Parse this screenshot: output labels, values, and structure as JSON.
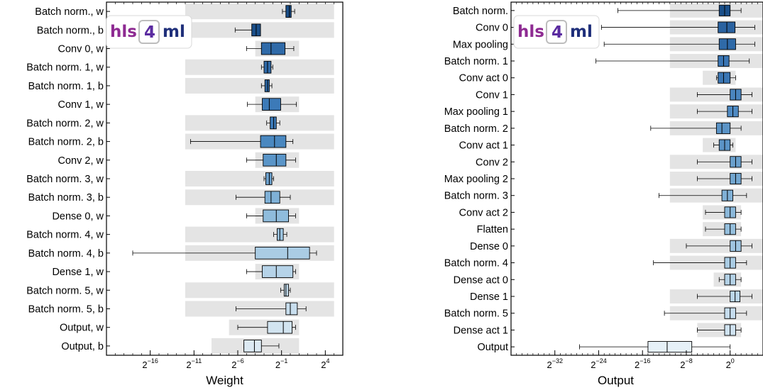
{
  "logo": {
    "part1": "hls",
    "part2": "4",
    "part3": "ml"
  },
  "chart_data": [
    {
      "type": "box",
      "xlabel": "Weight",
      "xscale": "log2",
      "xlim_exp": [
        -21,
        6
      ],
      "xticks": [
        {
          "base": "2",
          "exp": "−16",
          "e": -16
        },
        {
          "base": "2",
          "exp": "−11",
          "e": -11
        },
        {
          "base": "2",
          "exp": "−6",
          "e": -6
        },
        {
          "base": "2",
          "exp": "−1",
          "e": -1
        },
        {
          "base": "2",
          "exp": "4",
          "e": 4
        }
      ],
      "rows": [
        {
          "label": "Batch norm., w",
          "band": [
            -12,
            5
          ],
          "whisker": [
            -0.9,
            0.5
          ],
          "box": [
            -0.5,
            0.1
          ],
          "median": -0.1,
          "color": "#1a4f8a"
        },
        {
          "label": "Batch norm., b",
          "band": [
            -12,
            5
          ],
          "whisker": [
            -6.3,
            -3.4
          ],
          "box": [
            -4.4,
            -3.4
          ],
          "median": -3.9,
          "color": "#1a4f8a"
        },
        {
          "label": "Conv 0, w",
          "band": [
            -4,
            1
          ],
          "whisker": [
            -5.0,
            0.4
          ],
          "box": [
            -3.3,
            -0.6
          ],
          "median": -2.2,
          "color": "#2f6aa8"
        },
        {
          "label": "Batch norm. 1, w",
          "band": [
            -12,
            5
          ],
          "whisker": [
            -3.3,
            -2.0
          ],
          "box": [
            -3.0,
            -2.2
          ],
          "median": -2.6,
          "color": "#2f6aa8"
        },
        {
          "label": "Batch norm. 1, b",
          "band": [
            -12,
            5
          ],
          "whisker": [
            -3.3,
            -2.1
          ],
          "box": [
            -2.9,
            -2.4
          ],
          "median": -2.6,
          "color": "#2f6aa8"
        },
        {
          "label": "Conv 1, w",
          "band": [
            -4,
            1
          ],
          "whisker": [
            -4.9,
            0.7
          ],
          "box": [
            -3.2,
            -1.1
          ],
          "median": -2.4,
          "color": "#3c7ab8"
        },
        {
          "label": "Batch norm. 2, w",
          "band": [
            -12,
            5
          ],
          "whisker": [
            -2.7,
            -1.2
          ],
          "box": [
            -2.3,
            -1.6
          ],
          "median": -1.9,
          "color": "#3c7ab8"
        },
        {
          "label": "Batch norm. 2, b",
          "band": [
            -12,
            5
          ],
          "whisker": [
            -11.4,
            0.3
          ],
          "box": [
            -3.4,
            -0.5
          ],
          "median": -1.8,
          "color": "#4a88c0"
        },
        {
          "label": "Conv 2, w",
          "band": [
            -4,
            1
          ],
          "whisker": [
            -5.0,
            0.6
          ],
          "box": [
            -3.1,
            -0.5
          ],
          "median": -1.6,
          "color": "#5a95c8"
        },
        {
          "label": "Batch norm. 3, w",
          "band": [
            -12,
            5
          ],
          "whisker": [
            -3.0,
            -1.9
          ],
          "box": [
            -2.8,
            -2.1
          ],
          "median": -2.4,
          "color": "#6ea3cf"
        },
        {
          "label": "Batch norm. 3, b",
          "band": [
            -12,
            5
          ],
          "whisker": [
            -6.2,
            0.0
          ],
          "box": [
            -2.9,
            -1.2
          ],
          "median": -2.2,
          "color": "#7fb0d6"
        },
        {
          "label": "Dense 0, w",
          "band": [
            -4,
            1
          ],
          "whisker": [
            -5.0,
            0.6
          ],
          "box": [
            -3.1,
            -0.2
          ],
          "median": -1.6,
          "color": "#8fbcdc"
        },
        {
          "label": "Batch norm. 4, w",
          "band": [
            -12,
            5
          ],
          "whisker": [
            -1.9,
            -0.4
          ],
          "box": [
            -1.5,
            -0.8
          ],
          "median": -1.2,
          "color": "#9cc4e0"
        },
        {
          "label": "Batch norm. 4, b",
          "band": [
            -12,
            5
          ],
          "whisker": [
            -18.0,
            3.0
          ],
          "box": [
            -4.0,
            2.2
          ],
          "median": -0.3,
          "color": "#aaccE4"
        },
        {
          "label": "Dense 1, w",
          "band": [
            -4,
            1
          ],
          "whisker": [
            -5.0,
            0.6
          ],
          "box": [
            -3.2,
            0.3
          ],
          "median": -1.6,
          "color": "#b6d3e8"
        },
        {
          "label": "Batch norm. 5, w",
          "band": [
            -12,
            5
          ],
          "whisker": [
            -1.1,
            0.0
          ],
          "box": [
            -0.7,
            -0.2
          ],
          "median": -0.5,
          "color": "#c0d9ea"
        },
        {
          "label": "Batch norm. 5, b",
          "band": [
            -12,
            5
          ],
          "whisker": [
            -6.2,
            1.8
          ],
          "box": [
            -0.5,
            0.8
          ],
          "median": 0.0,
          "color": "#c8deee"
        },
        {
          "label": "Output, w",
          "band": [
            -7,
            1
          ],
          "whisker": [
            -6.0,
            0.6
          ],
          "box": [
            -2.6,
            0.2
          ],
          "median": -0.8,
          "color": "#d2e4f0"
        },
        {
          "label": "Output, b",
          "band": [
            -9,
            1
          ],
          "whisker": [
            -5.3,
            -1.3
          ],
          "box": [
            -5.3,
            -3.3
          ],
          "median": -4.1,
          "color": "#dce9f3"
        }
      ]
    },
    {
      "type": "box",
      "xlabel": "Output",
      "xscale": "log2",
      "xlim_exp": [
        -40,
        6
      ],
      "xticks": [
        {
          "base": "2",
          "exp": "−32",
          "e": -32
        },
        {
          "base": "2",
          "exp": "−24",
          "e": -24
        },
        {
          "base": "2",
          "exp": "−16",
          "e": -16
        },
        {
          "base": "2",
          "exp": "−8",
          "e": -8
        },
        {
          "base": "2",
          "exp": "0",
          "e": 0
        }
      ],
      "rows": [
        {
          "label": "Batch norm.",
          "band": [
            -11,
            6
          ],
          "whisker": [
            -20.5,
            2.0
          ],
          "box": [
            -2.0,
            0.0
          ],
          "median": -1.0,
          "color": "#1a4f8a"
        },
        {
          "label": "Conv 0",
          "band": [
            -11,
            6
          ],
          "whisker": [
            -23.5,
            4.5
          ],
          "box": [
            -2.2,
            0.9
          ],
          "median": -0.6,
          "color": "#2a62a0"
        },
        {
          "label": "Max pooling",
          "band": [
            -11,
            6
          ],
          "whisker": [
            -23.0,
            4.5
          ],
          "box": [
            -2.0,
            1.0
          ],
          "median": -0.5,
          "color": "#2f6aa8"
        },
        {
          "label": "Batch norm. 1",
          "band": [
            -11,
            6
          ],
          "whisker": [
            -24.5,
            3.5
          ],
          "box": [
            -2.2,
            -0.2
          ],
          "median": -1.2,
          "color": "#3a75b3"
        },
        {
          "label": "Conv act 0",
          "band": [
            -5,
            1
          ],
          "whisker": [
            -2.5,
            1.0
          ],
          "box": [
            -2.2,
            0.0
          ],
          "median": -1.2,
          "color": "#3a75b3"
        },
        {
          "label": "Conv 1",
          "band": [
            -11,
            6
          ],
          "whisker": [
            -6.0,
            4.0
          ],
          "box": [
            0.0,
            2.0
          ],
          "median": 1.0,
          "color": "#4a85bf"
        },
        {
          "label": "Max pooling 1",
          "band": [
            -11,
            6
          ],
          "whisker": [
            -6.0,
            4.0
          ],
          "box": [
            -0.5,
            1.5
          ],
          "median": 0.5,
          "color": "#4f8ac2"
        },
        {
          "label": "Batch norm. 2",
          "band": [
            -11,
            6
          ],
          "whisker": [
            -14.5,
            2.0
          ],
          "box": [
            -2.5,
            0.0
          ],
          "median": -1.5,
          "color": "#5b94c7"
        },
        {
          "label": "Conv act 1",
          "band": [
            -5,
            1
          ],
          "whisker": [
            -3.0,
            0.5
          ],
          "box": [
            -2.0,
            0.0
          ],
          "median": -1.0,
          "color": "#5b94c7"
        },
        {
          "label": "Conv 2",
          "band": [
            -11,
            6
          ],
          "whisker": [
            -6.0,
            4.0
          ],
          "box": [
            0.0,
            2.0
          ],
          "median": 1.0,
          "color": "#6aa0cd"
        },
        {
          "label": "Max pooling 2",
          "band": [
            -11,
            6
          ],
          "whisker": [
            -6.0,
            4.0
          ],
          "box": [
            0.0,
            2.0
          ],
          "median": 1.0,
          "color": "#72a6d0"
        },
        {
          "label": "Batch norm. 3",
          "band": [
            -11,
            6
          ],
          "whisker": [
            -13.0,
            3.0
          ],
          "box": [
            -1.5,
            0.5
          ],
          "median": -0.5,
          "color": "#80b0d6"
        },
        {
          "label": "Conv act 2",
          "band": [
            -5,
            2
          ],
          "whisker": [
            -4.5,
            2.0
          ],
          "box": [
            -1.0,
            1.0
          ],
          "median": 0.0,
          "color": "#8bb8da"
        },
        {
          "label": "Flatten",
          "band": [
            -5,
            2
          ],
          "whisker": [
            -4.5,
            2.0
          ],
          "box": [
            -1.0,
            1.0
          ],
          "median": 0.0,
          "color": "#95bfdd"
        },
        {
          "label": "Dense 0",
          "band": [
            -11,
            6
          ],
          "whisker": [
            -8.0,
            4.0
          ],
          "box": [
            0.0,
            2.0
          ],
          "median": 1.0,
          "color": "#a0c6e1"
        },
        {
          "label": "Batch norm. 4",
          "band": [
            -11,
            6
          ],
          "whisker": [
            -14.0,
            3.0
          ],
          "box": [
            -1.0,
            1.0
          ],
          "median": 0.0,
          "color": "#aacce4"
        },
        {
          "label": "Dense act 0",
          "band": [
            -3,
            2
          ],
          "whisker": [
            -2.0,
            2.0
          ],
          "box": [
            -1.0,
            1.0
          ],
          "median": 0.0,
          "color": "#b4d2e7"
        },
        {
          "label": "Dense 1",
          "band": [
            -11,
            6
          ],
          "whisker": [
            -6.0,
            4.0
          ],
          "box": [
            0.0,
            1.8
          ],
          "median": 0.9,
          "color": "#bcd7ea"
        },
        {
          "label": "Batch norm. 5",
          "band": [
            -11,
            6
          ],
          "whisker": [
            -12.0,
            3.0
          ],
          "box": [
            -1.0,
            1.0
          ],
          "median": 0.0,
          "color": "#c6ddee"
        },
        {
          "label": "Dense act 1",
          "band": [
            -6,
            2
          ],
          "whisker": [
            -6.0,
            2.0
          ],
          "box": [
            -1.0,
            1.0
          ],
          "median": 0.0,
          "color": "#d0e3f1"
        },
        {
          "label": "Output",
          "band": [
            0,
            0
          ],
          "whisker": [
            -27.5,
            0.0
          ],
          "box": [
            -15.0,
            -7.0
          ],
          "median": -11.5,
          "color": "#e6f0f8"
        }
      ]
    }
  ]
}
